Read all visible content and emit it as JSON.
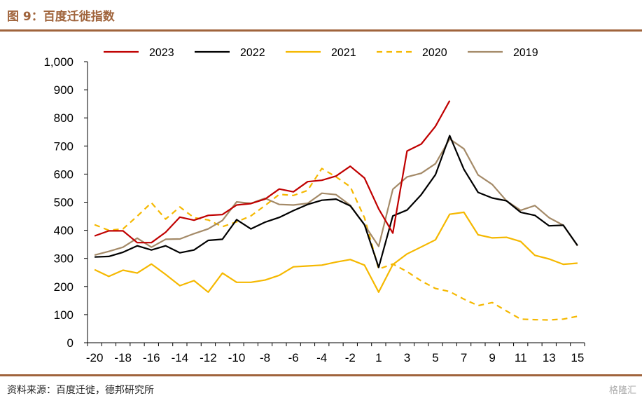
{
  "header": {
    "title": "图 9：百度迁徙指数"
  },
  "footer": {
    "source": "资料来源：百度迁徙，德邦研究所",
    "watermark": "格隆汇"
  },
  "chart_data": {
    "type": "line",
    "x": [
      -20,
      -19,
      -18,
      -17,
      -16,
      -15,
      -14,
      -13,
      -12,
      -11,
      -10,
      -9,
      -8,
      -7,
      -6,
      -5,
      -4,
      -3,
      -2,
      -1,
      1,
      2,
      3,
      4,
      5,
      6,
      7,
      8,
      9,
      10,
      11,
      12,
      13,
      14,
      15
    ],
    "x_tick_labels": [
      "-20",
      "-18",
      "-16",
      "-14",
      "-12",
      "-10",
      "-8",
      "-6",
      "-4",
      "-2",
      "1",
      "3",
      "5",
      "7",
      "9",
      "11",
      "13",
      "15"
    ],
    "ylim": [
      0,
      1000
    ],
    "y_ticks": [
      "0",
      "100",
      "200",
      "300",
      "400",
      "500",
      "600",
      "700",
      "800",
      "900",
      "1,000"
    ],
    "grid": false,
    "legend": "top",
    "series": [
      {
        "name": "2023",
        "color": "#c00000",
        "dash": "solid",
        "values": [
          380,
          398,
          398,
          356,
          356,
          393,
          447,
          436,
          453,
          456,
          490,
          495,
          511,
          547,
          537,
          573,
          578,
          593,
          628,
          586,
          476,
          390,
          682,
          707,
          770,
          861,
          null,
          null,
          null,
          null,
          null,
          null,
          null,
          null,
          null
        ]
      },
      {
        "name": "2022",
        "color": "#000000",
        "dash": "solid",
        "values": [
          305,
          307,
          322,
          345,
          330,
          345,
          320,
          330,
          364,
          368,
          438,
          405,
          429,
          446,
          470,
          492,
          507,
          511,
          487,
          420,
          268,
          451,
          472,
          527,
          598,
          737,
          617,
          535,
          515,
          505,
          464,
          453,
          416,
          418,
          346
        ]
      },
      {
        "name": "2021",
        "color": "#f5b800",
        "dash": "solid",
        "values": [
          260,
          236,
          258,
          248,
          280,
          243,
          203,
          221,
          180,
          248,
          215,
          215,
          223,
          240,
          270,
          273,
          276,
          287,
          296,
          276,
          180,
          278,
          316,
          341,
          366,
          457,
          464,
          384,
          373,
          375,
          360,
          311,
          298,
          279,
          283
        ]
      },
      {
        "name": "2020",
        "color": "#f5b800",
        "dash": "dashed",
        "values": [
          420,
          400,
          405,
          450,
          498,
          440,
          483,
          445,
          437,
          413,
          430,
          451,
          488,
          528,
          524,
          542,
          620,
          590,
          555,
          445,
          262,
          280,
          253,
          220,
          193,
          182,
          155,
          132,
          143,
          113,
          84,
          82,
          81,
          84,
          94
        ]
      },
      {
        "name": "2019",
        "color": "#a48a68",
        "dash": "solid",
        "values": [
          312,
          325,
          340,
          372,
          340,
          368,
          369,
          388,
          405,
          435,
          501,
          496,
          514,
          492,
          490,
          496,
          532,
          527,
          489,
          419,
          343,
          546,
          590,
          603,
          637,
          725,
          690,
          597,
          563,
          505,
          471,
          488,
          445,
          418,
          345
        ]
      }
    ]
  }
}
